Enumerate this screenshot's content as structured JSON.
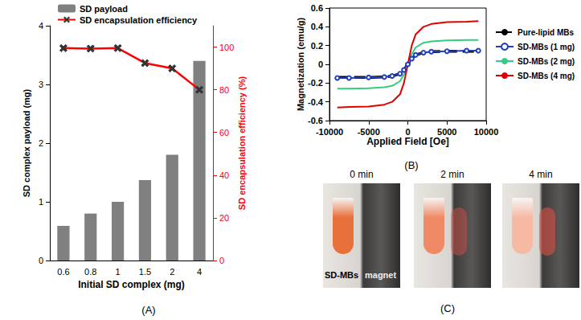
{
  "chart_data": [
    {
      "type": "bar",
      "title": "(A)",
      "categories": [
        "0.6",
        "0.8",
        "1",
        "1.5",
        "2",
        "4"
      ],
      "x_label": "Initial SD complex (mg)",
      "y_label": "SD complex payload (mg)",
      "y2_label": "SD encapsulation efficiency (%)",
      "ylim": [
        0,
        4
      ],
      "yticks": [
        0,
        1,
        2,
        3,
        4
      ],
      "y2lim": [
        0,
        110
      ],
      "y2ticks": [
        0,
        20,
        40,
        60,
        80,
        100
      ],
      "grid": false,
      "legend": "top-left",
      "series": [
        {
          "name": "SD payload",
          "type": "bar",
          "color": "#808080",
          "values": [
            0.59,
            0.8,
            1.0,
            1.37,
            1.8,
            3.4
          ]
        },
        {
          "name": "SD encapsulation efficiency",
          "type": "line",
          "axis": "y2",
          "color": "#ff0000",
          "marker": "x",
          "values": [
            99.5,
            99.3,
            99.5,
            92.5,
            90,
            80
          ]
        }
      ]
    },
    {
      "type": "line",
      "title": "(B)",
      "x_label": "Applied Field [Oe]",
      "y_label": "Magnetization (emu/g)",
      "x": [
        -9000,
        -7500,
        -5000,
        -3000,
        -2000,
        -1000,
        -500,
        0,
        500,
        1000,
        2000,
        3000,
        5000,
        7500,
        9000
      ],
      "xlim": [
        -10000,
        10000
      ],
      "xticks": [
        -10000,
        -5000,
        0,
        5000,
        10000
      ],
      "ylim": [
        -0.6,
        0.6
      ],
      "yticks": [
        -0.6,
        -0.4,
        -0.2,
        0,
        0.2,
        0.4,
        0.6
      ],
      "grid": false,
      "legend": "right",
      "series": [
        {
          "name": "Pure-lipid MBs",
          "color": "#000000",
          "line_style": "dashed",
          "values": [
            -0.14,
            -0.14,
            -0.14,
            -0.135,
            -0.125,
            -0.1,
            -0.06,
            0,
            0.06,
            0.1,
            0.125,
            0.135,
            0.14,
            0.14,
            0.14
          ]
        },
        {
          "name": "SD-MBs (1 mg)",
          "color": "#1f3fbf",
          "marker": "circle",
          "values": [
            -0.145,
            -0.145,
            -0.14,
            -0.135,
            -0.125,
            -0.1,
            -0.06,
            0,
            0.06,
            0.1,
            0.125,
            0.135,
            0.14,
            0.145,
            0.145
          ]
        },
        {
          "name": "SD-MBs (2 mg)",
          "color": "#33cc80",
          "values": [
            -0.26,
            -0.26,
            -0.255,
            -0.245,
            -0.23,
            -0.18,
            -0.11,
            0,
            0.11,
            0.18,
            0.23,
            0.245,
            0.255,
            0.26,
            0.26
          ]
        },
        {
          "name": "SD-MBs (4 mg)",
          "color": "#e00000",
          "values": [
            -0.46,
            -0.455,
            -0.45,
            -0.43,
            -0.4,
            -0.32,
            -0.2,
            0,
            0.2,
            0.32,
            0.4,
            0.43,
            0.45,
            0.455,
            0.46
          ]
        }
      ]
    }
  ],
  "photo_panel": {
    "title": "(C)",
    "photos": [
      {
        "title": "0 min",
        "labels": [
          "SD-MBs",
          "magnet"
        ]
      },
      {
        "title": "2 min"
      },
      {
        "title": "4 min"
      }
    ]
  }
}
